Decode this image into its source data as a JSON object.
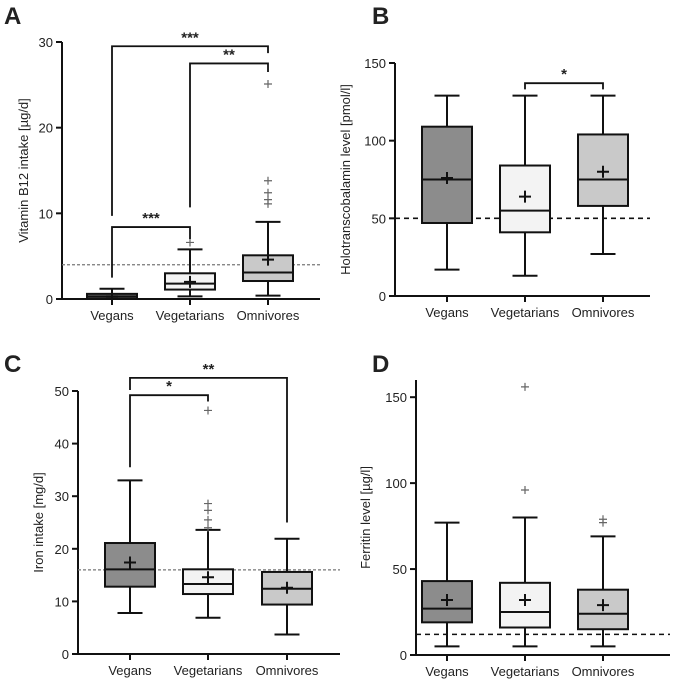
{
  "chart_data": [
    {
      "panel": "A",
      "type": "box",
      "ylabel": "Vitamin B12 intake [µg/d]",
      "ylim": [
        0,
        30
      ],
      "yticks": [
        "0",
        "10",
        "20",
        "30"
      ],
      "categories": [
        "Vegans",
        "Vegetarians",
        "Omnivores"
      ],
      "colors": [
        "#8c8c8c",
        "#f3f3f3",
        "#c9c9c9"
      ],
      "reference_line": 4.0,
      "boxes": [
        {
          "min": 0,
          "q1": 0.05,
          "median": 0.3,
          "q3": 0.6,
          "max": 1.2,
          "mean": 0.3,
          "outliers": []
        },
        {
          "min": 0.3,
          "q1": 1.1,
          "median": 1.8,
          "q3": 3.0,
          "max": 5.8,
          "mean": 2.0,
          "outliers": [
            6.6
          ]
        },
        {
          "min": 0.4,
          "q1": 2.1,
          "median": 3.1,
          "q3": 5.1,
          "max": 9.0,
          "mean": 4.6,
          "outliers": [
            11.1,
            11.6,
            12.4,
            13.8,
            25.1
          ]
        }
      ],
      "brackets": [
        {
          "from": 0,
          "to": 1,
          "label": "***",
          "y": 8.4,
          "drop_from": 2.5,
          "drop_to": 7.0
        },
        {
          "from": 1,
          "to": 2,
          "label": "**",
          "y": 27.5,
          "drop_from": 10.7,
          "drop_to": 26.5
        },
        {
          "from": 0,
          "to": 2,
          "label": "***",
          "y": 29.5,
          "drop_from": 9.7,
          "drop_to": 28.7
        }
      ]
    },
    {
      "panel": "B",
      "type": "box",
      "ylabel": "Holotranscobalamin level [pmol/l]",
      "ylim": [
        0,
        150
      ],
      "yticks": [
        "0",
        "50",
        "100",
        "150"
      ],
      "categories": [
        "Vegans",
        "Vegetarians",
        "Omnivores"
      ],
      "colors": [
        "#8c8c8c",
        "#f3f3f3",
        "#c9c9c9"
      ],
      "reference_line": 50,
      "boxes": [
        {
          "min": 17,
          "q1": 47,
          "median": 75,
          "q3": 109,
          "max": 129,
          "mean": 76,
          "outliers": []
        },
        {
          "min": 13,
          "q1": 41,
          "median": 55,
          "q3": 84,
          "max": 129,
          "mean": 64,
          "outliers": []
        },
        {
          "min": 27,
          "q1": 58,
          "median": 75,
          "q3": 104,
          "max": 129,
          "mean": 80,
          "outliers": []
        }
      ],
      "brackets": [
        {
          "from": 1,
          "to": 2,
          "label": "*",
          "y": 137,
          "drop_from": 133,
          "drop_to": 133
        }
      ]
    },
    {
      "panel": "C",
      "type": "box",
      "ylabel": "Iron intake [mg/d]",
      "ylim": [
        0,
        50
      ],
      "yticks": [
        "0",
        "10",
        "20",
        "30",
        "40",
        "50"
      ],
      "categories": [
        "Vegans",
        "Vegetarians",
        "Omnivores"
      ],
      "colors": [
        "#8c8c8c",
        "#f3f3f3",
        "#c9c9c9"
      ],
      "reference_line": 16,
      "boxes": [
        {
          "min": 7.8,
          "q1": 12.8,
          "median": 16.1,
          "q3": 21.1,
          "max": 33,
          "mean": 17.4,
          "outliers": []
        },
        {
          "min": 6.9,
          "q1": 11.4,
          "median": 13.3,
          "q3": 16.1,
          "max": 23.6,
          "mean": 14.6,
          "outliers": [
            24.0,
            25.5,
            27.3,
            28.6,
            46.3
          ]
        },
        {
          "min": 3.7,
          "q1": 9.4,
          "median": 12.4,
          "q3": 15.6,
          "max": 21.9,
          "mean": 12.6,
          "outliers": []
        }
      ],
      "brackets": [
        {
          "from": 0,
          "to": 1,
          "label": "*",
          "y": 49.2,
          "drop_from": 35.5,
          "drop_to": 48.0
        },
        {
          "from": 0,
          "to": 2,
          "label": "**",
          "y": 52.5,
          "drop_from": 50.2,
          "drop_to": 25.0
        }
      ]
    },
    {
      "panel": "D",
      "type": "box",
      "ylabel": "Ferritin level [µg/l]",
      "ylim": [
        0,
        160
      ],
      "yticks": [
        "0",
        "50",
        "100",
        "150"
      ],
      "categories": [
        "Vegans",
        "Vegetarians",
        "Omnivores"
      ],
      "colors": [
        "#8c8c8c",
        "#f3f3f3",
        "#c9c9c9"
      ],
      "reference_line": 12,
      "boxes": [
        {
          "min": 5,
          "q1": 19,
          "median": 27,
          "q3": 43,
          "max": 77,
          "mean": 32,
          "outliers": []
        },
        {
          "min": 5,
          "q1": 16,
          "median": 25,
          "q3": 42,
          "max": 80,
          "mean": 32,
          "outliers": [
            96,
            156
          ]
        },
        {
          "min": 5,
          "q1": 15,
          "median": 24,
          "q3": 38,
          "max": 69,
          "mean": 29,
          "outliers": [
            77,
            79
          ]
        }
      ],
      "brackets": []
    }
  ]
}
